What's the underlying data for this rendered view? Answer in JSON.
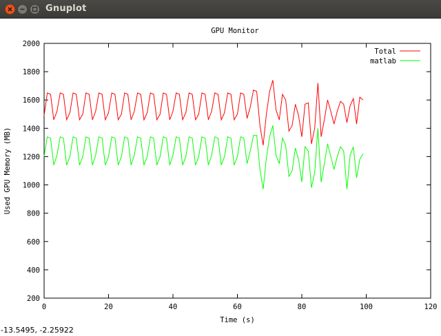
{
  "window": {
    "title": "Gnuplot"
  },
  "status": {
    "coords": "-13.5495, -2.25922"
  },
  "chart_data": {
    "type": "line",
    "title": "GPU Monitor",
    "xlabel": "Time (s)",
    "ylabel": "Used GPU Memory (MB)",
    "xlim": [
      0,
      120
    ],
    "ylim": [
      200,
      2000
    ],
    "xticks": [
      0,
      20,
      40,
      60,
      80,
      100,
      120
    ],
    "yticks": [
      200,
      400,
      600,
      800,
      1000,
      1200,
      1400,
      1600,
      1800,
      2000
    ],
    "grid": false,
    "legend": "top-right",
    "series": [
      {
        "name": "Total",
        "color": "#ff0000",
        "x": [
          0,
          1,
          2,
          3,
          4,
          5,
          6,
          7,
          8,
          9,
          10,
          11,
          12,
          13,
          14,
          15,
          16,
          17,
          18,
          19,
          20,
          21,
          22,
          23,
          24,
          25,
          26,
          27,
          28,
          29,
          30,
          31,
          32,
          33,
          34,
          35,
          36,
          37,
          38,
          39,
          40,
          41,
          42,
          43,
          44,
          45,
          46,
          47,
          48,
          49,
          50,
          51,
          52,
          53,
          54,
          55,
          56,
          57,
          58,
          59,
          60,
          61,
          62,
          63,
          64,
          65,
          66,
          67,
          68,
          69,
          70,
          71,
          72,
          73,
          74,
          75,
          76,
          77,
          78,
          79,
          80,
          81,
          82,
          83,
          84,
          85,
          86,
          87,
          88,
          89,
          90,
          91,
          92,
          93,
          94,
          95,
          96,
          97,
          98,
          99
        ],
        "values": [
          1490,
          1650,
          1640,
          1460,
          1520,
          1650,
          1640,
          1460,
          1510,
          1650,
          1640,
          1460,
          1500,
          1650,
          1640,
          1460,
          1520,
          1650,
          1640,
          1460,
          1510,
          1650,
          1640,
          1460,
          1500,
          1650,
          1640,
          1460,
          1520,
          1650,
          1640,
          1460,
          1510,
          1650,
          1640,
          1460,
          1500,
          1650,
          1640,
          1460,
          1520,
          1650,
          1640,
          1460,
          1510,
          1650,
          1640,
          1460,
          1500,
          1650,
          1640,
          1460,
          1520,
          1650,
          1640,
          1460,
          1510,
          1650,
          1640,
          1460,
          1500,
          1650,
          1640,
          1470,
          1550,
          1670,
          1660,
          1420,
          1280,
          1500,
          1660,
          1740,
          1530,
          1460,
          1640,
          1600,
          1380,
          1420,
          1570,
          1490,
          1340,
          1570,
          1580,
          1290,
          1400,
          1720,
          1340,
          1460,
          1600,
          1520,
          1430,
          1520,
          1590,
          1570,
          1440,
          1560,
          1610,
          1430,
          1620,
          1600
        ]
      },
      {
        "name": "matlab",
        "color": "#00ff00",
        "x": [
          0,
          1,
          2,
          3,
          4,
          5,
          6,
          7,
          8,
          9,
          10,
          11,
          12,
          13,
          14,
          15,
          16,
          17,
          18,
          19,
          20,
          21,
          22,
          23,
          24,
          25,
          26,
          27,
          28,
          29,
          30,
          31,
          32,
          33,
          34,
          35,
          36,
          37,
          38,
          39,
          40,
          41,
          42,
          43,
          44,
          45,
          46,
          47,
          48,
          49,
          50,
          51,
          52,
          53,
          54,
          55,
          56,
          57,
          58,
          59,
          60,
          61,
          62,
          63,
          64,
          65,
          66,
          67,
          68,
          69,
          70,
          71,
          72,
          73,
          74,
          75,
          76,
          77,
          78,
          79,
          80,
          81,
          82,
          83,
          84,
          85,
          86,
          87,
          88,
          89,
          90,
          91,
          92,
          93,
          94,
          95,
          96,
          97,
          98,
          99
        ],
        "values": [
          1200,
          1340,
          1330,
          1140,
          1210,
          1340,
          1330,
          1140,
          1200,
          1340,
          1330,
          1140,
          1200,
          1340,
          1330,
          1140,
          1210,
          1340,
          1330,
          1140,
          1200,
          1340,
          1330,
          1140,
          1200,
          1340,
          1330,
          1140,
          1210,
          1340,
          1330,
          1140,
          1200,
          1340,
          1330,
          1140,
          1200,
          1340,
          1330,
          1140,
          1210,
          1340,
          1330,
          1140,
          1200,
          1340,
          1330,
          1140,
          1200,
          1340,
          1330,
          1140,
          1210,
          1340,
          1330,
          1140,
          1200,
          1340,
          1330,
          1140,
          1200,
          1340,
          1330,
          1150,
          1240,
          1350,
          1350,
          1110,
          970,
          1190,
          1340,
          1420,
          1210,
          1150,
          1330,
          1280,
          1060,
          1100,
          1260,
          1180,
          1020,
          1270,
          1240,
          980,
          1090,
          1400,
          1020,
          1150,
          1290,
          1200,
          1110,
          1200,
          1270,
          1240,
          970,
          1210,
          1270,
          1050,
          1180,
          1220
        ]
      }
    ]
  }
}
